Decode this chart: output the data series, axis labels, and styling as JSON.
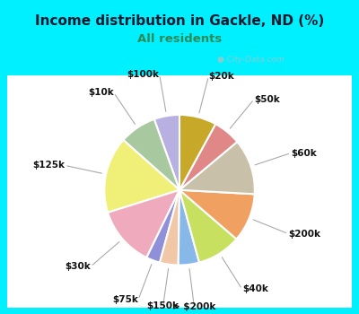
{
  "title": "Income distribution in Gackle, ND (%)",
  "subtitle": "All residents",
  "title_color": "#1a1a2e",
  "subtitle_color": "#2e8b57",
  "bg_cyan": "#00f0ff",
  "bg_chart_colors": [
    "#c8ede0",
    "#ffffff"
  ],
  "watermark": "City-Data.com",
  "labels": [
    "$100k",
    "$10k",
    "$125k",
    "$30k",
    "$75k",
    "$150k",
    "> $200k",
    "$40k",
    "$200k",
    "$60k",
    "$50k",
    "$20k"
  ],
  "values": [
    5.5,
    8.0,
    16.5,
    13.0,
    3.0,
    4.0,
    4.5,
    9.5,
    10.5,
    12.0,
    6.0,
    8.0
  ],
  "colors": [
    "#b8b0e0",
    "#a8c8a0",
    "#f0f078",
    "#f0aabe",
    "#9090d8",
    "#f0c8a8",
    "#88b8e8",
    "#c8e060",
    "#f0a060",
    "#c8c0a8",
    "#e08888",
    "#c8a828"
  ],
  "label_fontsize": 7.5,
  "startangle": 90
}
